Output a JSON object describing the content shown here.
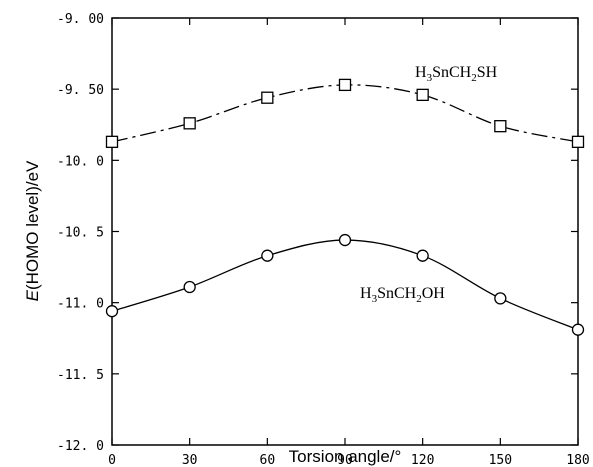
{
  "chart_data": {
    "type": "line",
    "xlabel": "Torsion angle/°",
    "ylabel_italic": "E",
    "ylabel_rest": "(HOMO level)/eV",
    "xlim": [
      0,
      180
    ],
    "ylim": [
      -12.0,
      -9.0
    ],
    "x_ticks": [
      0,
      30,
      60,
      90,
      120,
      150,
      180
    ],
    "x_tick_labels": [
      "0",
      "30",
      "60",
      "90",
      "120",
      "150",
      "180"
    ],
    "y_ticks": [
      -9.0,
      -9.5,
      -10.0,
      -10.5,
      -11.0,
      -11.5,
      -12.0
    ],
    "y_tick_labels": [
      "-9. 00",
      "-9. 50",
      "-10. 0",
      "-10. 5",
      "-11. 0",
      "-11. 5",
      "-12. 0"
    ],
    "grid": false,
    "series": [
      {
        "label_parts": [
          "H",
          "3",
          "SnCH",
          "2",
          "SH"
        ],
        "marker": "square",
        "line_style": "dashed",
        "x": [
          0,
          30,
          60,
          90,
          120,
          150,
          180
        ],
        "y": [
          -9.87,
          -9.74,
          -9.56,
          -9.47,
          -9.54,
          -9.76,
          -9.87
        ]
      },
      {
        "label_parts": [
          "H",
          "3",
          "SnCH",
          "2",
          "OH"
        ],
        "marker": "circle",
        "line_style": "solid",
        "x": [
          0,
          30,
          60,
          90,
          120,
          150,
          180
        ],
        "y": [
          -11.06,
          -10.89,
          -10.67,
          -10.56,
          -10.67,
          -10.97,
          -11.19
        ]
      }
    ]
  }
}
